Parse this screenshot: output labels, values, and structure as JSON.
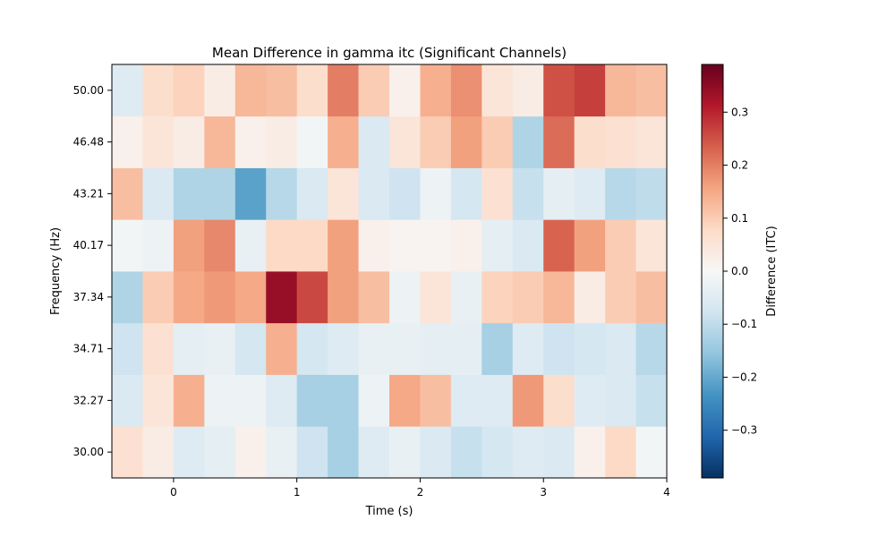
{
  "chart_data": {
    "type": "heatmap",
    "title": "Mean Difference in gamma itc (Significant Channels)",
    "xlabel": "Time (s)",
    "ylabel": "Frequency (Hz)",
    "xlim": [
      -0.5,
      4.0
    ],
    "x_ticks": [
      0,
      1,
      2,
      3,
      4
    ],
    "x_tick_labels": [
      "0",
      "1",
      "2",
      "3",
      "4"
    ],
    "y_tick_labels": [
      "30.00",
      "32.27",
      "34.71",
      "37.34",
      "40.17",
      "43.21",
      "46.48",
      "50.00"
    ],
    "colorbar": {
      "label": "Difference (ITC)",
      "colormap": "RdBu_r",
      "vmin": -0.39,
      "vmax": 0.39,
      "ticks": [
        -0.3,
        -0.2,
        -0.1,
        0.0,
        0.1,
        0.2,
        0.3
      ],
      "tick_labels": [
        "−0.3",
        "−0.2",
        "−0.1",
        "0.0",
        "0.1",
        "0.2",
        "0.3"
      ]
    },
    "time_bins": [
      -0.5,
      -0.25,
      0.0,
      0.25,
      0.5,
      0.75,
      1.0,
      1.25,
      1.5,
      1.75,
      2.0,
      2.25,
      2.5,
      2.75,
      3.0,
      3.25,
      3.5,
      3.75
    ],
    "bin_width": 0.25,
    "rows": [
      {
        "frequency": "30.00",
        "values": [
          0.06,
          0.03,
          -0.05,
          -0.04,
          0.02,
          -0.03,
          -0.08,
          -0.13,
          -0.05,
          -0.03,
          -0.06,
          -0.09,
          -0.07,
          -0.05,
          -0.06,
          0.02,
          0.08,
          -0.01
        ]
      },
      {
        "frequency": "32.27",
        "values": [
          -0.06,
          0.05,
          0.14,
          -0.02,
          -0.02,
          -0.05,
          -0.13,
          -0.13,
          -0.02,
          0.15,
          0.12,
          -0.05,
          -0.05,
          0.17,
          0.07,
          -0.05,
          -0.06,
          -0.09
        ]
      },
      {
        "frequency": "34.71",
        "values": [
          -0.08,
          0.06,
          -0.04,
          -0.03,
          -0.07,
          0.14,
          -0.07,
          -0.05,
          -0.03,
          -0.03,
          -0.04,
          -0.04,
          -0.13,
          -0.05,
          -0.08,
          -0.07,
          -0.06,
          -0.11
        ]
      },
      {
        "frequency": "37.34",
        "values": [
          -0.12,
          0.1,
          0.15,
          0.17,
          0.15,
          0.34,
          0.26,
          0.16,
          0.12,
          -0.02,
          0.05,
          -0.03,
          0.09,
          0.1,
          0.13,
          0.03,
          0.1,
          0.12
        ]
      },
      {
        "frequency": "40.17",
        "values": [
          -0.01,
          -0.02,
          0.16,
          0.19,
          -0.03,
          0.08,
          0.08,
          0.16,
          0.02,
          0.01,
          0.01,
          0.02,
          -0.04,
          -0.06,
          0.23,
          0.16,
          0.1,
          0.05
        ]
      },
      {
        "frequency": "43.21",
        "values": [
          0.12,
          -0.06,
          -0.12,
          -0.12,
          -0.21,
          -0.11,
          -0.06,
          0.05,
          -0.06,
          -0.08,
          -0.02,
          -0.07,
          0.06,
          -0.09,
          -0.04,
          -0.05,
          -0.11,
          -0.1
        ]
      },
      {
        "frequency": "46.48",
        "values": [
          0.02,
          0.05,
          0.03,
          0.13,
          0.02,
          0.03,
          -0.01,
          0.14,
          -0.06,
          0.05,
          0.1,
          0.16,
          0.1,
          -0.12,
          0.22,
          0.07,
          0.06,
          0.05
        ]
      },
      {
        "frequency": "50.00",
        "values": [
          -0.05,
          0.07,
          0.09,
          0.03,
          0.13,
          0.12,
          0.07,
          0.2,
          0.1,
          0.02,
          0.14,
          0.18,
          0.05,
          0.03,
          0.25,
          0.27,
          0.13,
          0.12
        ]
      }
    ]
  }
}
